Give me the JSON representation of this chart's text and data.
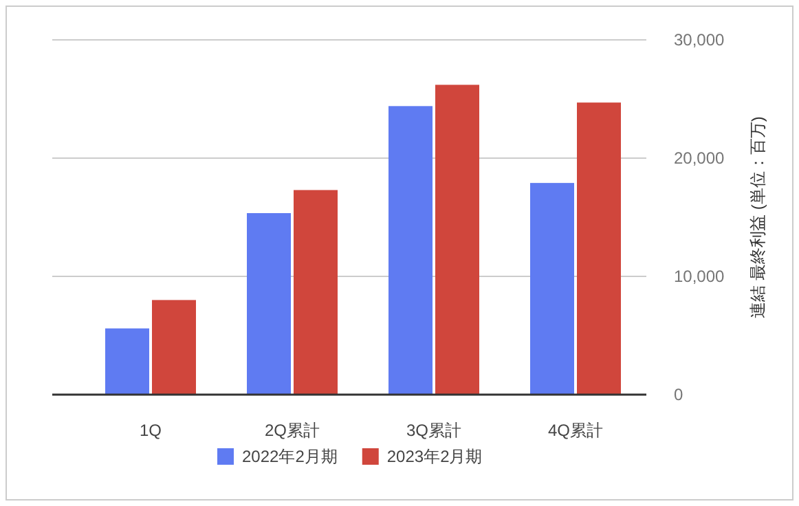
{
  "chart_data": {
    "type": "bar",
    "ylabel": "連結 最終利益 (単位：百万)",
    "categories": [
      "1Q",
      "2Q累計",
      "3Q累計",
      "4Q累計"
    ],
    "series": [
      {
        "name": "2022年2月期",
        "color": "#5f7bf2",
        "values": [
          5600,
          15350,
          24400,
          17900
        ]
      },
      {
        "name": "2023年2月期",
        "color": "#d0463c",
        "values": [
          8000,
          17300,
          26200,
          24700
        ]
      }
    ],
    "ylim": [
      0,
      30000
    ],
    "yticks": [
      0,
      {
        "value": 10000,
        "label": "10,000"
      },
      {
        "value": 20000,
        "label": "20,000"
      },
      {
        "value": 30000,
        "label": "30,000"
      }
    ],
    "grid": "y",
    "legend": "bottom"
  }
}
